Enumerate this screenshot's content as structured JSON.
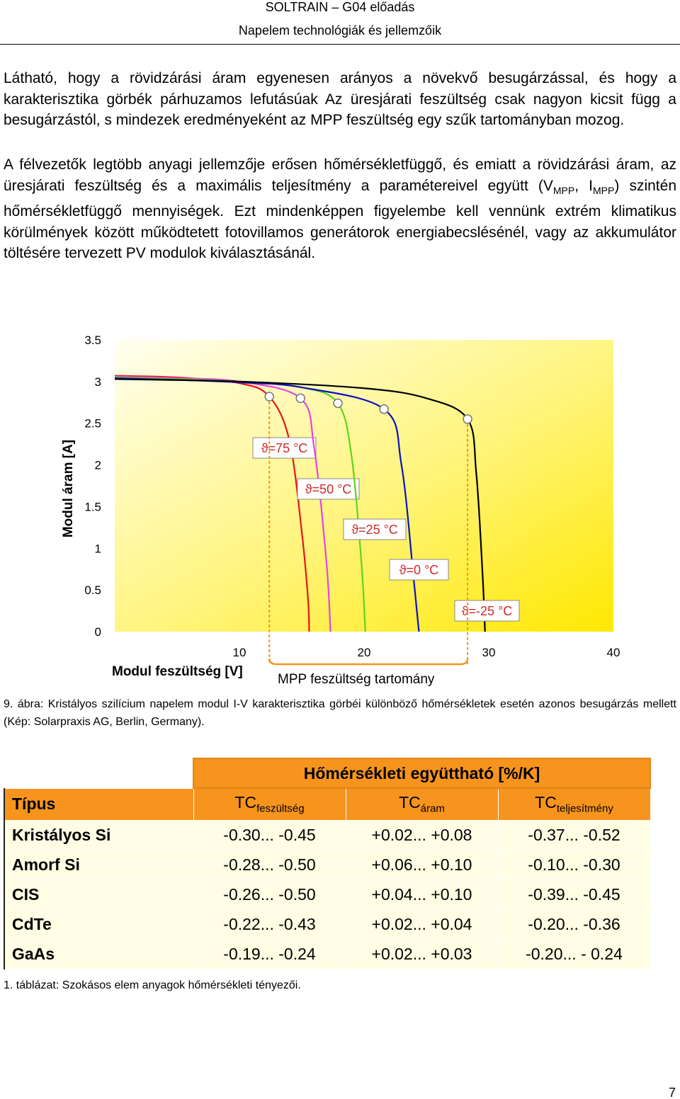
{
  "header": {
    "title": "SOLTRAIN – G04 előadás",
    "subtitle": "Napelem technológiák és jellemzőik"
  },
  "paragraphs": [
    [
      "Látható, hogy a rövidzárási áram egyenesen arányos a növekvő besugárzással, és hogy a karakterisztika görbék párhuzamos lefutásúak Az üresjárati feszültség csak nagyon kicsit függ a besugárzástól, s mindezek eredményeként az MPP feszültség egy szűk tartományban mozog."
    ],
    [
      "A félvezetők legtöbb anyagi jellemzője erősen hőmérsékletfüggő, és emiatt a rövidzárási áram, az üresjárati feszültség és a maximális teljesítmény a paramétereivel együtt (V",
      "MPP",
      ", I",
      "MPP",
      ") szintén hőmérsékletfüggő mennyiségek. Ezt mindenképpen figyelembe kell vennünk extrém klimatikus körülmények között működtetett fotovillamos generátorok energiabecslésénél, vagy az akkumulátor töltésére tervezett PV modulok kiválasztásánál."
    ]
  ],
  "chart_data": {
    "type": "line",
    "x_label": "Modul feszültség [V]",
    "y_label": "Modul áram [A]",
    "annotation": "MPP feszültség tartomány",
    "grid": false,
    "xlim": [
      0,
      40
    ],
    "ylim": [
      0,
      3.5
    ],
    "xticks": [
      10,
      20,
      30,
      40
    ],
    "yticks": [
      0,
      0.5,
      1,
      1.5,
      2,
      2.5,
      3,
      3.5
    ],
    "series": [
      {
        "name": "ϑ=75 °C",
        "color": "#e8141a",
        "x": [
          0,
          5,
          10,
          12.4,
          14,
          15,
          15.5,
          15.6
        ],
        "values": [
          3.07,
          3.05,
          2.98,
          2.82,
          2.3,
          1.2,
          0.4,
          0
        ]
      },
      {
        "name": "ϑ=50 °C",
        "color": "#e444e4",
        "x": [
          0,
          5,
          10,
          14.9,
          16,
          17,
          17.3
        ],
        "values": [
          3.06,
          3.04,
          3.0,
          2.8,
          2.2,
          0.8,
          0
        ]
      },
      {
        "name": "ϑ=25 °C",
        "color": "#5fd420",
        "x": [
          0,
          5,
          10,
          15,
          17.9,
          19,
          19.8,
          20.1
        ],
        "values": [
          3.05,
          3.03,
          3.0,
          2.93,
          2.74,
          2.1,
          0.8,
          0
        ]
      },
      {
        "name": "ϑ=0 °C",
        "color": "#0a12c0",
        "x": [
          0,
          5,
          10,
          15,
          21.6,
          23,
          24,
          24.4
        ],
        "values": [
          3.04,
          3.02,
          2.99,
          2.93,
          2.67,
          2.0,
          0.6,
          0
        ]
      },
      {
        "name": "ϑ=-25 °C",
        "color": "#000000",
        "x": [
          0,
          10,
          20,
          25,
          28.3,
          29,
          29.5,
          29.7
        ],
        "values": [
          3.03,
          3.0,
          2.92,
          2.8,
          2.55,
          1.9,
          0.7,
          0
        ]
      }
    ]
  },
  "caption": "9. ábra: Kristályos szilícium napelem modul I-V karakterisztika görbéi különböző hőmérsékletek esetén azonos besugárzás mellett (Kép: Solarpraxis AG, Berlin, Germany).",
  "table": {
    "group_header": "Hőmérsékleti együttható [%/K]",
    "columns": [
      [
        "Típus"
      ],
      [
        "TC",
        "feszültség"
      ],
      [
        "TC",
        "áram"
      ],
      [
        "TC",
        "teljesítmény"
      ]
    ],
    "rows": [
      [
        "Kristályos Si",
        "-0.30... -0.45",
        "+0.02... +0.08",
        "-0.37... -0.52"
      ],
      [
        "Amorf Si",
        "-0.28... -0.50",
        "+0.06... +0.10",
        "-0.10... -0.30"
      ],
      [
        "CIS",
        "-0.26... -0.50",
        "+0.04... +0.10",
        "-0.39... -0.45"
      ],
      [
        "CdTe",
        "-0.22... -0.43",
        "+0.02... +0.04",
        "-0.20... -0.36"
      ],
      [
        "GaAs",
        "-0.19... -0.24",
        "+0.02... +0.03",
        "-0.20... - 0.24"
      ]
    ]
  },
  "table_caption": "1. táblázat: Szokásos elem anyagok hőmérsékleti tényezői.",
  "page_number": "7"
}
